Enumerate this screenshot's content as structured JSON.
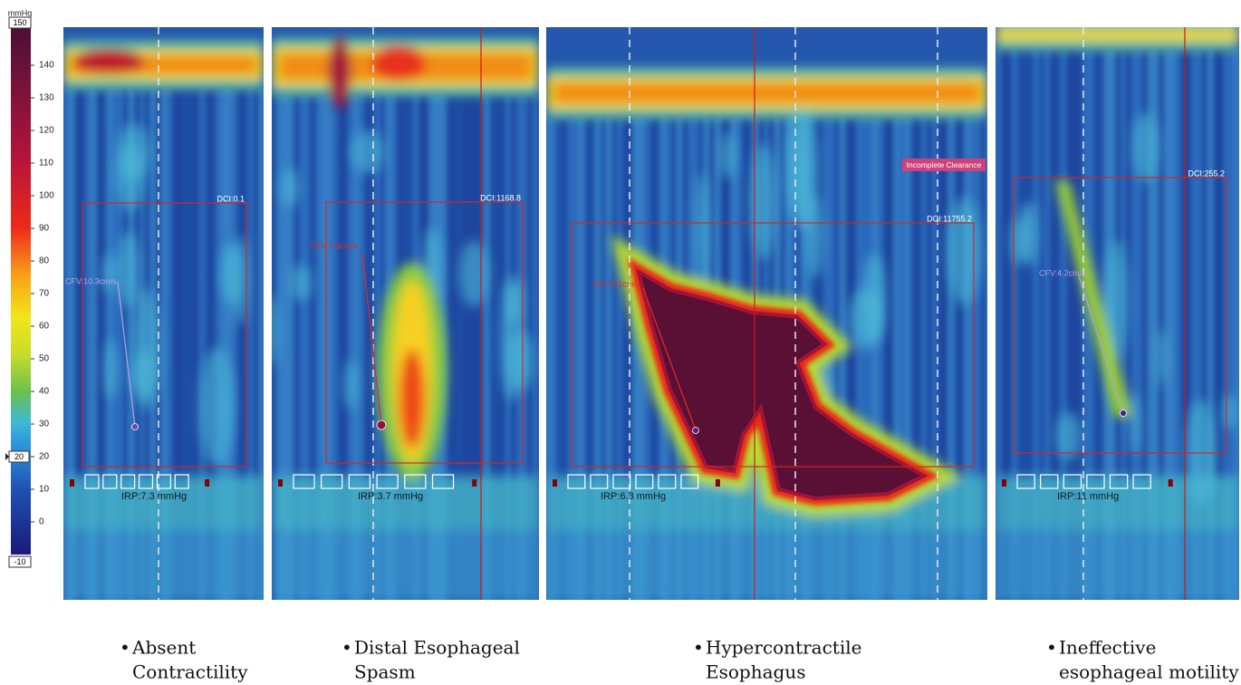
{
  "colorbar": {
    "unit": "mmHg",
    "max": 150,
    "min": -10,
    "marker": 20,
    "ticks": [
      140,
      130,
      120,
      110,
      100,
      90,
      80,
      70,
      60,
      50,
      40,
      30,
      20,
      10,
      0,
      -10
    ]
  },
  "panels": [
    {
      "dci": "DCI:0.1",
      "cfv": "CFV:10.3cm/s",
      "irp": "IRP:7.3 mmHg",
      "caption": [
        "Absent",
        "Contractility"
      ]
    },
    {
      "dci": "DCI:1168.8",
      "cfv": "CFV:7.8cm/s",
      "irp": "IRP:3.7 mmHg",
      "caption": [
        "Distal Esophageal",
        "Spasm"
      ]
    },
    {
      "dci": "DCI:11755.2",
      "note": "Incomplete Clearance",
      "cfv": "CFV:3.1cm/s",
      "irp": "IRP:6.3 mmHg",
      "caption": [
        "Hypercontractile",
        "Esophagus"
      ]
    },
    {
      "dci": "DCI:255.2",
      "cfv": "CFV:4.2cm/s",
      "irp": "IRP:11 mmHg",
      "caption": [
        "Ineffective",
        "esophageal motility"
      ]
    }
  ]
}
